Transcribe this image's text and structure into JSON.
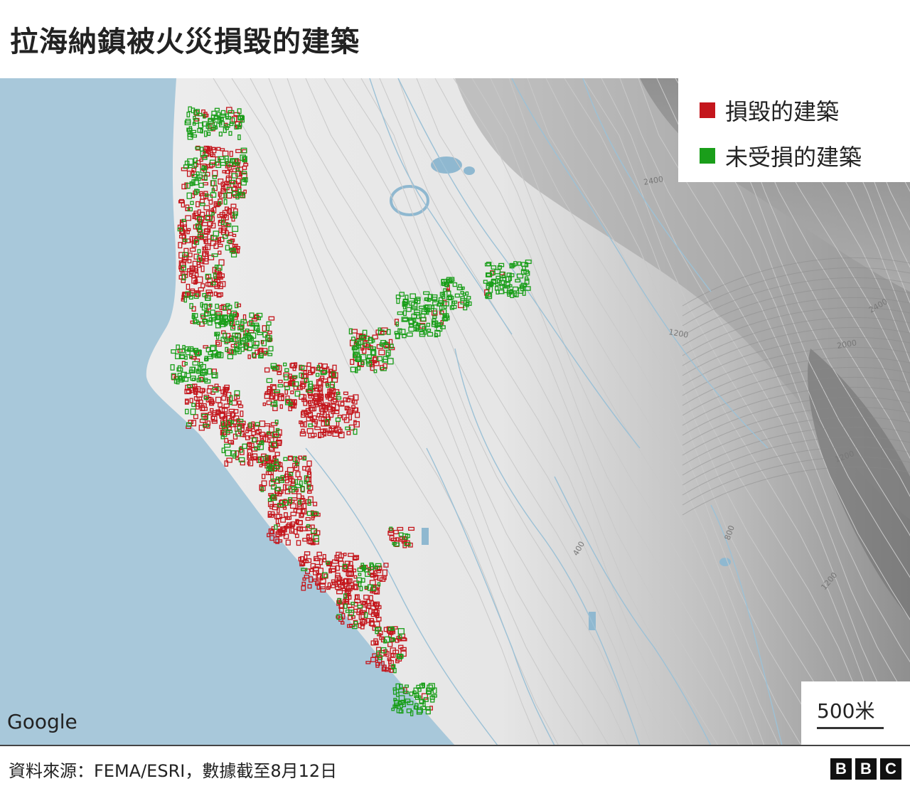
{
  "title": "拉海納鎮被火災損毀的建築",
  "legend": {
    "items": [
      {
        "label": "損毀的建築",
        "color": "#c4161c"
      },
      {
        "label": "未受損的建築",
        "color": "#1a9e1a"
      }
    ]
  },
  "scale": {
    "label": "500米"
  },
  "attribution": "Google",
  "source": "資料來源：FEMA/ESRI，數據截至8月12日",
  "logo": [
    "B",
    "B",
    "C"
  ],
  "contours": [
    "400",
    "800",
    "1200",
    "1200",
    "1200",
    "2000",
    "2400",
    "2400"
  ],
  "colors": {
    "sea": "#a8c8da",
    "land": "#ececec",
    "damaged": "#c4161c",
    "undamaged": "#1a9e1a",
    "water": "#8fb8d0"
  }
}
